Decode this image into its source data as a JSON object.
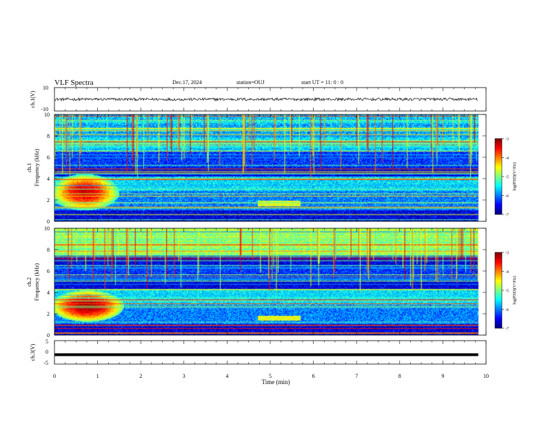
{
  "header": {
    "title": "VLF Spectra",
    "date": "Dec.17, 2024",
    "station": "station=OUJ",
    "start": "start  UT =   11: 0  : 0"
  },
  "chart_data": [
    {
      "type": "line",
      "panel": "ch1-waveform",
      "ylabel": "ch.1(V)",
      "ylim": [
        -10,
        10
      ],
      "yticks": [
        "10",
        "-10"
      ],
      "xlim": [
        0,
        10
      ],
      "series": [
        {
          "level": 0,
          "noise_amplitude": 1.2
        }
      ],
      "grid": false
    },
    {
      "type": "heatmap",
      "panel": "ch1-spectrogram",
      "ylabel_channel": "ch.1",
      "ylabel": "Frequency  (kHz)",
      "ylim": [
        0,
        10
      ],
      "yticks": [
        "0",
        "2",
        "4",
        "6",
        "8",
        "10"
      ],
      "xlim": [
        0,
        10
      ],
      "features": [
        {
          "kind": "chorus-blob",
          "t_range": [
            0,
            1.4
          ],
          "f_range": [
            1.2,
            4.2
          ],
          "log_psd_max": -3.3
        },
        {
          "kind": "band",
          "t_range": [
            4.7,
            5.7
          ],
          "f_range": [
            1.4,
            1.9
          ],
          "log_psd": -4.6
        },
        {
          "kind": "noise-band",
          "f_range": [
            6.5,
            10
          ],
          "log_psd": -5.6
        }
      ],
      "colorbar": {
        "label": "log(PSD)(V²/Hz)",
        "ticks": [
          "-3",
          "-4",
          "-5",
          "-6",
          "-7"
        ],
        "range": [
          -7,
          -3
        ]
      }
    },
    {
      "type": "heatmap",
      "panel": "ch2-spectrogram",
      "ylabel_channel": "ch.2",
      "ylabel": "Frequency  (kHz)",
      "ylim": [
        0,
        10
      ],
      "yticks": [
        "0",
        "2",
        "4",
        "6",
        "8",
        "10"
      ],
      "xlim": [
        0,
        10
      ],
      "features": [
        {
          "kind": "chorus-blob",
          "t_range": [
            0,
            1.5
          ],
          "f_range": [
            1.4,
            4.0
          ],
          "log_psd_max": -3.1
        },
        {
          "kind": "band",
          "t_range": [
            4.7,
            5.7
          ],
          "f_range": [
            1.3,
            1.8
          ],
          "log_psd": -4.6
        },
        {
          "kind": "noise-band",
          "f_range": [
            7.5,
            10
          ],
          "log_psd": -4.8
        }
      ],
      "colorbar": {
        "label": "log(PSD)(V²/Hz)",
        "ticks": [
          "-3",
          "-4",
          "-5",
          "-6",
          "-7"
        ],
        "range": [
          -7,
          -3
        ]
      }
    },
    {
      "type": "line",
      "panel": "ch3-waveform",
      "ylabel": "ch.3(V)",
      "ylim": [
        -5,
        5
      ],
      "yticks": [
        "5",
        "0",
        "-5"
      ],
      "xlim": [
        0,
        10
      ],
      "series": [
        {
          "level": -1.0,
          "noise_amplitude": 0.2
        }
      ],
      "xlabel": "Time  (min)",
      "xticks": [
        "0",
        "1",
        "2",
        "3",
        "4",
        "5",
        "6",
        "7",
        "8",
        "9",
        "10"
      ]
    }
  ]
}
